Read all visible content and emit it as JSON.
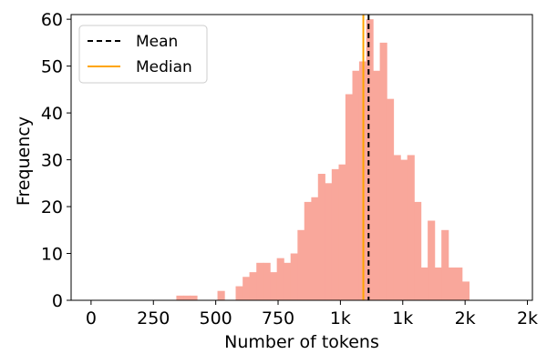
{
  "chart_data": {
    "type": "bar",
    "xlabel": "Number of tokens",
    "ylabel": "Frequency",
    "bar_color": "#f9a79b",
    "xticks": [
      {
        "value": 0,
        "label": "0"
      },
      {
        "value": 250,
        "label": "250"
      },
      {
        "value": 500,
        "label": "500"
      },
      {
        "value": 750,
        "label": "750"
      },
      {
        "value": 1000,
        "label": "1k"
      },
      {
        "value": 1250,
        "label": "1k"
      },
      {
        "value": 1500,
        "label": "2k"
      },
      {
        "value": 1750,
        "label": "2k"
      }
    ],
    "yticks": [
      0,
      10,
      20,
      30,
      40,
      50,
      60
    ],
    "xlim": [
      -80,
      1770
    ],
    "ylim": [
      0,
      61
    ],
    "bin_width": 27.5,
    "bins": [
      {
        "x": 342,
        "y": 1
      },
      {
        "x": 370,
        "y": 1
      },
      {
        "x": 397,
        "y": 1
      },
      {
        "x": 507,
        "y": 2
      },
      {
        "x": 580,
        "y": 3
      },
      {
        "x": 608,
        "y": 5
      },
      {
        "x": 635,
        "y": 6
      },
      {
        "x": 663,
        "y": 8
      },
      {
        "x": 690,
        "y": 8
      },
      {
        "x": 718,
        "y": 6
      },
      {
        "x": 745,
        "y": 9
      },
      {
        "x": 773,
        "y": 8
      },
      {
        "x": 800,
        "y": 10
      },
      {
        "x": 828,
        "y": 15
      },
      {
        "x": 855,
        "y": 21
      },
      {
        "x": 883,
        "y": 22
      },
      {
        "x": 910,
        "y": 27
      },
      {
        "x": 938,
        "y": 25
      },
      {
        "x": 965,
        "y": 28
      },
      {
        "x": 993,
        "y": 29
      },
      {
        "x": 1020,
        "y": 44
      },
      {
        "x": 1048,
        "y": 49
      },
      {
        "x": 1075,
        "y": 51
      },
      {
        "x": 1103,
        "y": 60
      },
      {
        "x": 1130,
        "y": 49
      },
      {
        "x": 1158,
        "y": 55
      },
      {
        "x": 1185,
        "y": 43
      },
      {
        "x": 1213,
        "y": 31
      },
      {
        "x": 1240,
        "y": 30
      },
      {
        "x": 1268,
        "y": 31
      },
      {
        "x": 1295,
        "y": 21
      },
      {
        "x": 1323,
        "y": 7
      },
      {
        "x": 1350,
        "y": 17
      },
      {
        "x": 1378,
        "y": 7
      },
      {
        "x": 1405,
        "y": 15
      },
      {
        "x": 1433,
        "y": 7
      },
      {
        "x": 1460,
        "y": 7
      },
      {
        "x": 1488,
        "y": 4
      }
    ],
    "mean": {
      "value": 1113,
      "label": "Mean",
      "color": "#000000",
      "style": "dashed"
    },
    "median": {
      "value": 1092,
      "label": "Median",
      "color": "#ffa500",
      "style": "solid"
    },
    "legend_position": "upper-left",
    "grid": false
  }
}
